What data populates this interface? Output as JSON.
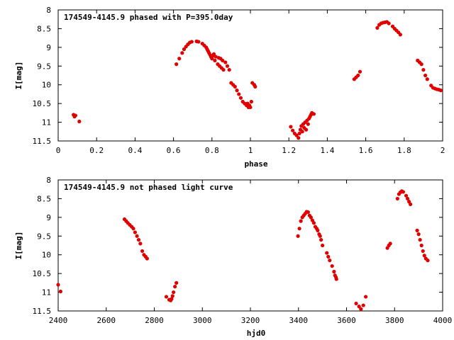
{
  "chart_data": [
    {
      "type": "scatter",
      "title": "174549-4145.9 phased with P=395.0day",
      "xlabel": "phase",
      "ylabel": "I[mag]",
      "xlim": [
        0,
        2
      ],
      "ylim": [
        11.5,
        8
      ],
      "y_inverted": true,
      "xticks": [
        "0",
        "0.2",
        "0.4",
        "0.6",
        "0.8",
        "1",
        "1.2",
        "1.4",
        "1.6",
        "1.8",
        "2"
      ],
      "yticks": [
        "8",
        "8.5",
        "9",
        "9.5",
        "10",
        "10.5",
        "11",
        "11.5"
      ],
      "point_color": "#e00000",
      "grid": false,
      "series": [
        {
          "x": [
            0.08,
            0.085,
            0.09,
            0.11,
            0.615,
            0.63,
            0.645,
            0.655,
            0.665,
            0.675,
            0.685,
            0.695,
            0.72,
            0.73,
            0.75,
            0.76,
            0.77,
            0.775,
            0.78,
            0.785,
            0.79,
            0.795,
            0.8,
            0.805,
            0.81,
            0.815,
            0.82,
            0.83,
            0.835,
            0.84,
            0.845,
            0.85,
            0.855,
            0.86,
            0.87,
            0.88,
            0.89,
            0.9,
            0.91,
            0.92,
            0.93,
            0.94,
            0.95,
            0.96,
            0.97,
            0.98,
            0.985,
            0.99,
            0.995,
            1.0,
            1.005,
            1.01,
            1.02,
            1.025,
            1.21,
            1.22,
            1.23,
            1.24,
            1.25,
            1.255,
            1.26,
            1.265,
            1.27,
            1.275,
            1.28,
            1.285,
            1.29,
            1.295,
            1.3,
            1.305,
            1.31,
            1.315,
            1.32,
            1.33,
            1.54,
            1.55,
            1.56,
            1.57,
            1.66,
            1.67,
            1.68,
            1.69,
            1.7,
            1.71,
            1.72,
            1.74,
            1.75,
            1.76,
            1.77,
            1.78,
            1.87,
            1.88,
            1.89,
            1.9,
            1.91,
            1.92,
            1.94,
            1.95,
            1.96,
            1.97,
            1.98,
            1.99
          ],
          "y": [
            10.8,
            10.85,
            10.82,
            10.98,
            9.45,
            9.3,
            9.15,
            9.05,
            8.98,
            8.92,
            8.87,
            8.85,
            8.84,
            8.85,
            8.9,
            8.95,
            9.0,
            9.05,
            9.1,
            9.15,
            9.2,
            9.25,
            9.3,
            9.22,
            9.18,
            9.35,
            9.25,
            9.45,
            9.28,
            9.5,
            9.3,
            9.55,
            9.35,
            9.6,
            9.4,
            9.5,
            9.6,
            9.95,
            10.0,
            10.05,
            10.15,
            10.25,
            10.35,
            10.45,
            10.5,
            10.55,
            10.5,
            10.6,
            10.55,
            10.6,
            10.45,
            9.95,
            10.0,
            10.05,
            11.12,
            11.22,
            11.3,
            11.35,
            11.42,
            11.3,
            11.2,
            11.1,
            11.25,
            11.05,
            11.15,
            11.0,
            11.2,
            10.95,
            11.05,
            10.9,
            10.85,
            10.8,
            10.75,
            10.78,
            9.85,
            9.8,
            9.75,
            9.65,
            8.48,
            8.4,
            8.36,
            8.34,
            8.33,
            8.32,
            8.36,
            8.44,
            8.5,
            8.55,
            8.6,
            8.66,
            9.35,
            9.4,
            9.45,
            9.6,
            9.75,
            9.85,
            10.02,
            10.08,
            10.1,
            10.12,
            10.13,
            10.15
          ]
        }
      ]
    },
    {
      "type": "scatter",
      "title": "174549-4145.9 not phased light curve",
      "xlabel": "hjd0",
      "ylabel": "I[mag]",
      "xlim": [
        2400,
        4000
      ],
      "ylim": [
        11.5,
        8
      ],
      "y_inverted": true,
      "xticks": [
        "2400",
        "2600",
        "2800",
        "3000",
        "3200",
        "3400",
        "3600",
        "3800",
        "4000"
      ],
      "yticks": [
        "8",
        "8.5",
        "9",
        "9.5",
        "10",
        "10.5",
        "11",
        "11.5"
      ],
      "point_color": "#e00000",
      "grid": false,
      "series": [
        {
          "x": [
            2400,
            2410,
            2676,
            2683,
            2690,
            2698,
            2706,
            2713,
            2720,
            2728,
            2735,
            2742,
            2750,
            2757,
            2764,
            2770,
            2850,
            2862,
            2868,
            2872,
            2876,
            2880,
            2886,
            2892,
            3398,
            3404,
            3410,
            3416,
            3422,
            3428,
            3434,
            3440,
            3446,
            3452,
            3458,
            3464,
            3470,
            3476,
            3480,
            3486,
            3490,
            3494,
            3500,
            3518,
            3524,
            3530,
            3540,
            3548,
            3552,
            3556,
            3558,
            3640,
            3652,
            3660,
            3670,
            3680,
            3770,
            3776,
            3782,
            3812,
            3818,
            3824,
            3830,
            3836,
            3848,
            3854,
            3860,
            3866,
            3894,
            3900,
            3906,
            3912,
            3918,
            3924,
            3930,
            3938
          ],
          "y": [
            10.8,
            10.98,
            9.05,
            9.1,
            9.15,
            9.2,
            9.25,
            9.3,
            9.4,
            9.5,
            9.6,
            9.7,
            9.9,
            10.0,
            10.05,
            10.1,
            11.12,
            11.2,
            11.22,
            11.18,
            11.1,
            11.0,
            10.85,
            10.75,
            9.5,
            9.3,
            9.1,
            9.0,
            8.95,
            8.9,
            8.85,
            8.86,
            8.95,
            9.0,
            9.08,
            9.15,
            9.25,
            9.3,
            9.35,
            9.45,
            9.5,
            9.6,
            9.75,
            9.95,
            10.05,
            10.15,
            10.3,
            10.45,
            10.55,
            10.6,
            10.65,
            11.3,
            11.38,
            11.45,
            11.35,
            11.12,
            9.82,
            9.75,
            9.7,
            8.5,
            8.38,
            8.33,
            8.3,
            8.32,
            8.42,
            8.5,
            8.58,
            8.65,
            9.35,
            9.45,
            9.6,
            9.75,
            9.9,
            10.02,
            10.1,
            10.15
          ]
        }
      ]
    }
  ]
}
